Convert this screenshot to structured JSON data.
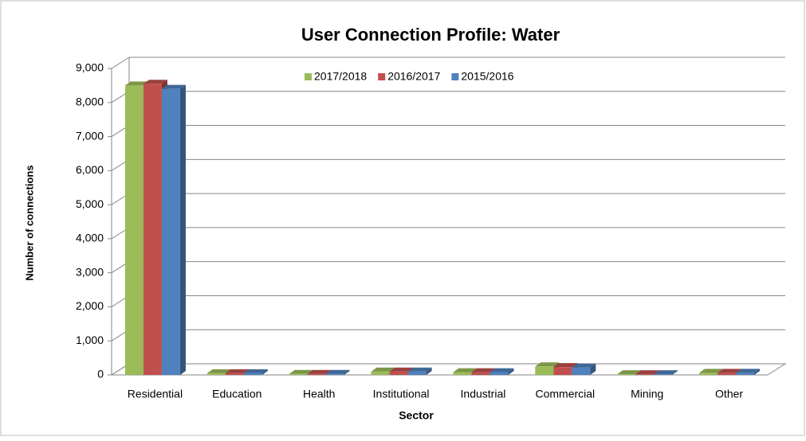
{
  "chart_data": {
    "type": "bar3d",
    "title": "User Connection Profile: Water",
    "x_label": "Sector",
    "y_label": "Number of connections",
    "categories": [
      "Residential",
      "Education",
      "Health",
      "Institutional",
      "Industrial",
      "Commercial",
      "Mining",
      "Other"
    ],
    "series": [
      {
        "name": "2017/2018",
        "color": "#9bbb59",
        "values": [
          8500,
          50,
          30,
          100,
          80,
          250,
          20,
          60
        ]
      },
      {
        "name": "2016/2017",
        "color": "#c0504d",
        "values": [
          8550,
          50,
          30,
          100,
          80,
          230,
          20,
          60
        ]
      },
      {
        "name": "2015/2016",
        "color": "#4f81bd",
        "values": [
          8400,
          50,
          30,
          100,
          80,
          220,
          20,
          60
        ]
      }
    ],
    "ylim": [
      0,
      9000
    ],
    "yticks": [
      0,
      {
        "value": 1000,
        "label": "1,000"
      },
      {
        "value": 2000,
        "label": "2,000"
      },
      {
        "value": 3000,
        "label": "3,000"
      },
      {
        "value": 4000,
        "label": "4,000"
      },
      {
        "value": 5000,
        "label": "5,000"
      },
      {
        "value": 6000,
        "label": "6,000"
      },
      {
        "value": 7000,
        "label": "7,000"
      },
      {
        "value": 8000,
        "label": "8,000"
      },
      {
        "value": 9000,
        "label": "9,000"
      }
    ],
    "grid": true,
    "legend": "top"
  }
}
